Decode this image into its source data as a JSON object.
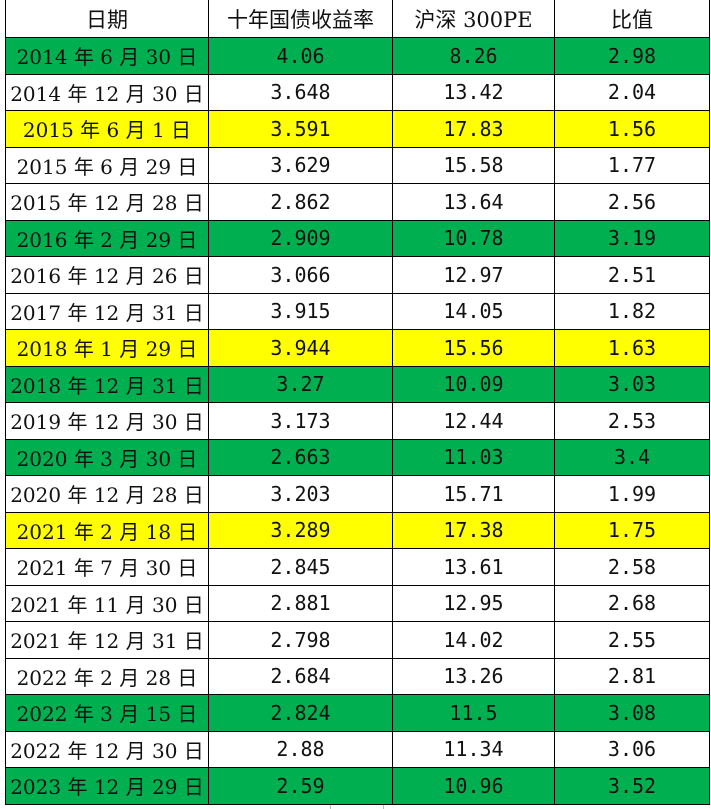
{
  "columns": [
    "日期",
    "十年国债收益率",
    "沪深 300PE",
    "比值"
  ],
  "colors": {
    "green": "#00b050",
    "yellow": "#ffff00",
    "none": "#ffffff"
  },
  "rows": [
    {
      "date": "2014 年 6 月 30 日",
      "yield": "4.06",
      "pe": "8.26",
      "ratio": "2.98",
      "highlight": "green"
    },
    {
      "date": "2014 年 12 月 30 日",
      "yield": "3.648",
      "pe": "13.42",
      "ratio": "2.04",
      "highlight": "none"
    },
    {
      "date": "2015 年 6 月 1 日",
      "yield": "3.591",
      "pe": "17.83",
      "ratio": "1.56",
      "highlight": "yellow"
    },
    {
      "date": "2015 年 6 月 29 日",
      "yield": "3.629",
      "pe": "15.58",
      "ratio": "1.77",
      "highlight": "none"
    },
    {
      "date": "2015 年 12 月 28 日",
      "yield": "2.862",
      "pe": "13.64",
      "ratio": "2.56",
      "highlight": "none"
    },
    {
      "date": "2016 年 2 月 29 日",
      "yield": "2.909",
      "pe": "10.78",
      "ratio": "3.19",
      "highlight": "green"
    },
    {
      "date": "2016 年 12 月 26 日",
      "yield": "3.066",
      "pe": "12.97",
      "ratio": "2.51",
      "highlight": "none"
    },
    {
      "date": "2017 年 12 月 31 日",
      "yield": "3.915",
      "pe": "14.05",
      "ratio": "1.82",
      "highlight": "none"
    },
    {
      "date": "2018 年 1 月 29 日",
      "yield": "3.944",
      "pe": "15.56",
      "ratio": "1.63",
      "highlight": "yellow"
    },
    {
      "date": "2018 年 12 月 31 日",
      "yield": "3.27",
      "pe": "10.09",
      "ratio": "3.03",
      "highlight": "green"
    },
    {
      "date": "2019 年 12 月 30 日",
      "yield": "3.173",
      "pe": "12.44",
      "ratio": "2.53",
      "highlight": "none"
    },
    {
      "date": "2020 年 3 月 30 日",
      "yield": "2.663",
      "pe": "11.03",
      "ratio": "3.4",
      "highlight": "green"
    },
    {
      "date": "2020 年 12 月 28 日",
      "yield": "3.203",
      "pe": "15.71",
      "ratio": "1.99",
      "highlight": "none"
    },
    {
      "date": "2021 年 2 月 18 日",
      "yield": "3.289",
      "pe": "17.38",
      "ratio": "1.75",
      "highlight": "yellow"
    },
    {
      "date": "2021 年 7 月 30 日",
      "yield": "2.845",
      "pe": "13.61",
      "ratio": "2.58",
      "highlight": "none"
    },
    {
      "date": "2021 年 11 月 30 日",
      "yield": "2.881",
      "pe": "12.95",
      "ratio": "2.68",
      "highlight": "none"
    },
    {
      "date": "2021 年 12 月 31 日",
      "yield": "2.798",
      "pe": "14.02",
      "ratio": "2.55",
      "highlight": "none"
    },
    {
      "date": "2022 年 2 月 28 日",
      "yield": "2.684",
      "pe": "13.26",
      "ratio": "2.81",
      "highlight": "none"
    },
    {
      "date": "2022 年 3 月 15 日",
      "yield": "2.824",
      "pe": "11.5",
      "ratio": "3.08",
      "highlight": "green"
    },
    {
      "date": "2022 年 12 月 30 日",
      "yield": "2.88",
      "pe": "11.34",
      "ratio": "3.06",
      "highlight": "none"
    },
    {
      "date": "2023 年 12 月 29 日",
      "yield": "2.59",
      "pe": "10.96",
      "ratio": "3.52",
      "highlight": "green"
    }
  ]
}
